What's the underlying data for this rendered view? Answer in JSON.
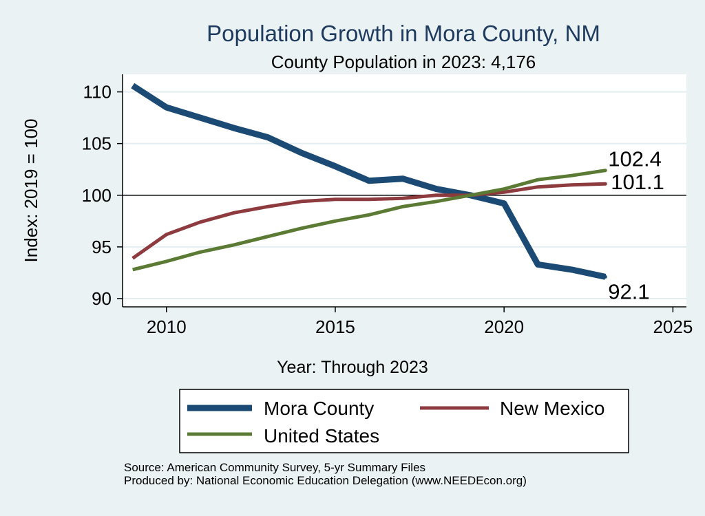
{
  "chart_data": {
    "type": "line",
    "title": "Population Growth in Mora County, NM",
    "subtitle": "County Population in 2023: 4,176",
    "xlabel": "Year: Through 2023",
    "ylabel": "Index: 2019 = 100",
    "xlim": [
      2008.7,
      2025.4
    ],
    "ylim": [
      89.2,
      111.7
    ],
    "xticks": [
      2010,
      2015,
      2020,
      2025
    ],
    "yticks": [
      90,
      95,
      100,
      105,
      110
    ],
    "reference_line": 100,
    "grid": true,
    "legend_position": "bottom",
    "x": [
      2009,
      2010,
      2011,
      2012,
      2013,
      2014,
      2015,
      2016,
      2017,
      2018,
      2019,
      2020,
      2021,
      2022,
      2023
    ],
    "series": [
      {
        "name": "Mora  County",
        "color": "#1b4a74",
        "values": [
          110.6,
          108.5,
          107.5,
          106.5,
          105.6,
          104.1,
          102.8,
          101.4,
          101.6,
          100.6,
          100.0,
          99.2,
          93.3,
          92.8,
          92.1
        ],
        "end_label": "92.1"
      },
      {
        "name": "New Mexico",
        "color": "#8e3b3f",
        "values": [
          93.9,
          96.2,
          97.4,
          98.3,
          98.9,
          99.4,
          99.6,
          99.6,
          99.7,
          100.0,
          100.0,
          100.3,
          100.8,
          101.0,
          101.1
        ],
        "end_label": "101.1"
      },
      {
        "name": "United States",
        "color": "#5b7a33",
        "values": [
          92.8,
          93.6,
          94.5,
          95.2,
          96.0,
          96.8,
          97.5,
          98.1,
          98.9,
          99.4,
          100.0,
          100.6,
          101.5,
          101.9,
          102.4
        ],
        "end_label": "102.4"
      }
    ],
    "source": "Source: American Community Survey, 5-yr Summary Files",
    "produced_by": "Produced by: National Economic Education Delegation (www.NEEDEcon.org)"
  }
}
